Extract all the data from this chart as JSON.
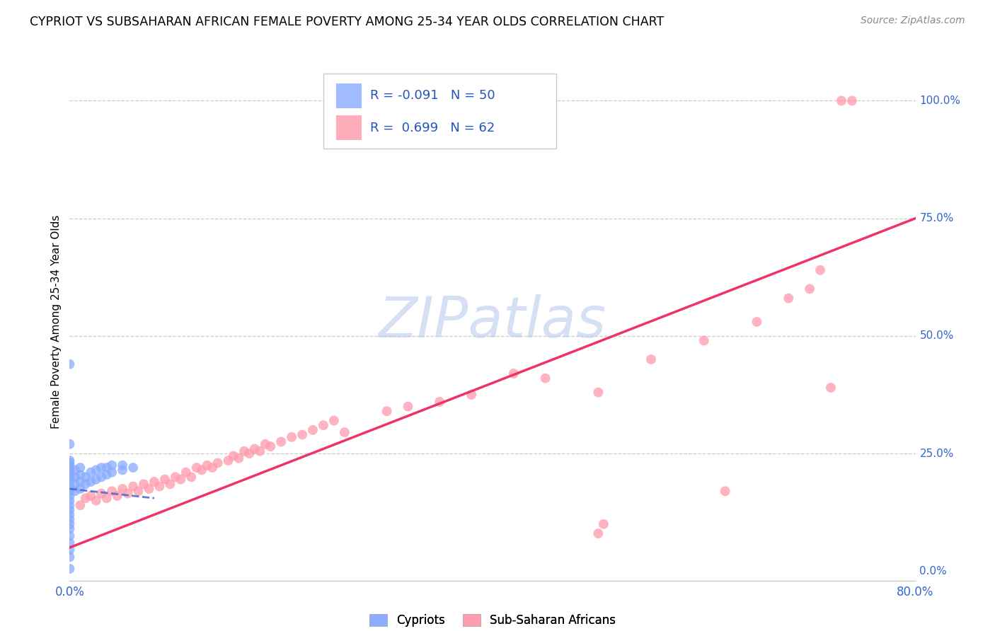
{
  "title": "CYPRIOT VS SUBSAHARAN AFRICAN FEMALE POVERTY AMONG 25-34 YEAR OLDS CORRELATION CHART",
  "source": "Source: ZipAtlas.com",
  "ylabel": "Female Poverty Among 25-34 Year Olds",
  "xlim": [
    0.0,
    0.8
  ],
  "ylim": [
    -0.02,
    1.08
  ],
  "xticks": [
    0.0,
    0.1,
    0.2,
    0.3,
    0.4,
    0.5,
    0.6,
    0.7,
    0.8
  ],
  "xticklabels": [
    "0.0%",
    "",
    "",
    "",
    "",
    "",
    "",
    "",
    "80.0%"
  ],
  "ytick_positions": [
    0.0,
    0.25,
    0.5,
    0.75,
    1.0
  ],
  "ytick_labels": [
    "0.0%",
    "25.0%",
    "50.0%",
    "75.0%",
    "100.0%"
  ],
  "cypriot_color": "#88AAFF",
  "subsaharan_color": "#FF99AA",
  "line_cypriot_color": "#4466CC",
  "line_subsaharan_color": "#EE3366",
  "watermark_zip": "ZIP",
  "watermark_atlas": "atlas",
  "watermark_color": "#BBCCEE",
  "cypriot_x": [
    0.0,
    0.0,
    0.0,
    0.0,
    0.0,
    0.0,
    0.0,
    0.0,
    0.0,
    0.0,
    0.0,
    0.0,
    0.0,
    0.0,
    0.0,
    0.0,
    0.0,
    0.0,
    0.0,
    0.0,
    0.0,
    0.0,
    0.0,
    0.0,
    0.005,
    0.005,
    0.005,
    0.005,
    0.01,
    0.01,
    0.01,
    0.01,
    0.015,
    0.015,
    0.02,
    0.02,
    0.025,
    0.025,
    0.03,
    0.03,
    0.035,
    0.035,
    0.04,
    0.04,
    0.05,
    0.05,
    0.06,
    0.0,
    0.0,
    0.0
  ],
  "cypriot_y": [
    0.03,
    0.045,
    0.06,
    0.075,
    0.09,
    0.1,
    0.11,
    0.12,
    0.13,
    0.14,
    0.15,
    0.16,
    0.17,
    0.18,
    0.19,
    0.195,
    0.2,
    0.205,
    0.21,
    0.215,
    0.22,
    0.225,
    0.23,
    0.235,
    0.17,
    0.185,
    0.2,
    0.215,
    0.175,
    0.19,
    0.205,
    0.22,
    0.185,
    0.2,
    0.19,
    0.21,
    0.195,
    0.215,
    0.2,
    0.22,
    0.205,
    0.22,
    0.21,
    0.225,
    0.215,
    0.225,
    0.22,
    0.005,
    0.27,
    0.44
  ],
  "subsaharan_x": [
    0.01,
    0.015,
    0.02,
    0.025,
    0.03,
    0.035,
    0.04,
    0.045,
    0.05,
    0.055,
    0.06,
    0.065,
    0.07,
    0.075,
    0.08,
    0.085,
    0.09,
    0.095,
    0.1,
    0.105,
    0.11,
    0.115,
    0.12,
    0.125,
    0.13,
    0.135,
    0.14,
    0.15,
    0.155,
    0.16,
    0.165,
    0.17,
    0.175,
    0.18,
    0.185,
    0.19,
    0.2,
    0.21,
    0.22,
    0.23,
    0.24,
    0.25,
    0.26,
    0.3,
    0.32,
    0.35,
    0.38,
    0.42,
    0.45,
    0.5,
    0.55,
    0.6,
    0.65,
    0.5,
    0.505,
    0.62,
    0.68,
    0.7,
    0.71,
    0.72,
    0.73,
    0.74
  ],
  "subsaharan_y": [
    0.14,
    0.155,
    0.16,
    0.15,
    0.165,
    0.155,
    0.17,
    0.16,
    0.175,
    0.165,
    0.18,
    0.17,
    0.185,
    0.175,
    0.19,
    0.18,
    0.195,
    0.185,
    0.2,
    0.195,
    0.21,
    0.2,
    0.22,
    0.215,
    0.225,
    0.22,
    0.23,
    0.235,
    0.245,
    0.24,
    0.255,
    0.25,
    0.26,
    0.255,
    0.27,
    0.265,
    0.275,
    0.285,
    0.29,
    0.3,
    0.31,
    0.32,
    0.295,
    0.34,
    0.35,
    0.36,
    0.375,
    0.42,
    0.41,
    0.38,
    0.45,
    0.49,
    0.53,
    0.08,
    0.1,
    0.17,
    0.58,
    0.6,
    0.64,
    0.39,
    1.0,
    1.0
  ]
}
